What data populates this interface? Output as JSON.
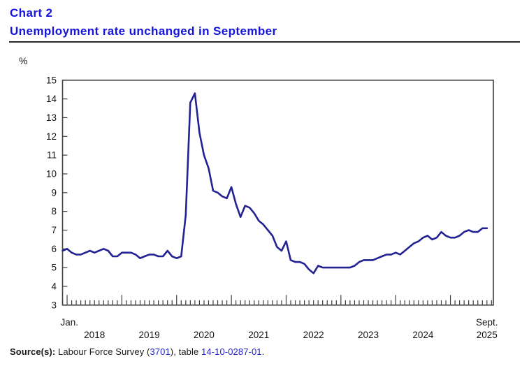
{
  "header": {
    "chart_label": "Chart 2",
    "title": "Unemployment rate unchanged in September"
  },
  "axis_unit": "%",
  "source": {
    "label": "Source(s):",
    "text_1": " Labour Force Survey (",
    "link_1": "3701",
    "text_2": "), table ",
    "link_2": "14-10-0287-01",
    "text_3": "."
  },
  "colors": {
    "title_blue": "#1414dd",
    "link_blue": "#2121cc",
    "line_navy": "#232293",
    "axis_dark": "#3f3f3f",
    "tick_text": "#151515"
  },
  "chart_data": {
    "type": "line",
    "title": "Chart 2",
    "subtitle": "Unemployment rate unchanged in September",
    "ylabel": "%",
    "ylim": [
      3,
      15
    ],
    "y_ticks": [
      15,
      14,
      13,
      12,
      11,
      10,
      9,
      8,
      7,
      6,
      5,
      4,
      3
    ],
    "grid": false,
    "legend": "none",
    "x_axis": {
      "first_tick_label": "Jan.",
      "year_labels": [
        "2018",
        "2019",
        "2020",
        "2021",
        "2022",
        "2023",
        "2024"
      ],
      "last_year_label": "2025",
      "last_month_label": "Sept.",
      "tick_frequency": "monthly",
      "major_tick_frequency": "yearly"
    },
    "series": [
      {
        "name": "Unemployment rate (%)",
        "color": "#232293",
        "start_month": "2017-12",
        "end_month": "2025-09",
        "months": [
          "2017-12",
          "2018-01",
          "2018-02",
          "2018-03",
          "2018-04",
          "2018-05",
          "2018-06",
          "2018-07",
          "2018-08",
          "2018-09",
          "2018-10",
          "2018-11",
          "2018-12",
          "2019-01",
          "2019-02",
          "2019-03",
          "2019-04",
          "2019-05",
          "2019-06",
          "2019-07",
          "2019-08",
          "2019-09",
          "2019-10",
          "2019-11",
          "2019-12",
          "2020-01",
          "2020-02",
          "2020-03",
          "2020-04",
          "2020-05",
          "2020-06",
          "2020-07",
          "2020-08",
          "2020-09",
          "2020-10",
          "2020-11",
          "2020-12",
          "2021-01",
          "2021-02",
          "2021-03",
          "2021-04",
          "2021-05",
          "2021-06",
          "2021-07",
          "2021-08",
          "2021-09",
          "2021-10",
          "2021-11",
          "2021-12",
          "2022-01",
          "2022-02",
          "2022-03",
          "2022-04",
          "2022-05",
          "2022-06",
          "2022-07",
          "2022-08",
          "2022-09",
          "2022-10",
          "2022-11",
          "2022-12",
          "2023-01",
          "2023-02",
          "2023-03",
          "2023-04",
          "2023-05",
          "2023-06",
          "2023-07",
          "2023-08",
          "2023-09",
          "2023-10",
          "2023-11",
          "2023-12",
          "2024-01",
          "2024-02",
          "2024-03",
          "2024-04",
          "2024-05",
          "2024-06",
          "2024-07",
          "2024-08",
          "2024-09",
          "2024-10",
          "2024-11",
          "2024-12",
          "2025-01",
          "2025-02",
          "2025-03",
          "2025-04",
          "2025-05",
          "2025-06",
          "2025-07",
          "2025-08",
          "2025-09"
        ],
        "values": [
          5.9,
          6.0,
          5.8,
          5.7,
          5.7,
          5.8,
          5.9,
          5.8,
          5.9,
          6.0,
          5.9,
          5.6,
          5.6,
          5.8,
          5.8,
          5.8,
          5.7,
          5.5,
          5.6,
          5.7,
          5.7,
          5.6,
          5.6,
          5.9,
          5.6,
          5.5,
          5.6,
          7.8,
          13.8,
          14.3,
          12.2,
          11.0,
          10.3,
          9.1,
          9.0,
          8.8,
          8.7,
          9.3,
          8.4,
          7.7,
          8.3,
          8.2,
          7.9,
          7.5,
          7.3,
          7.0,
          6.7,
          6.1,
          5.9,
          6.4,
          5.4,
          5.3,
          5.3,
          5.2,
          4.9,
          4.7,
          5.1,
          5.0,
          5.0,
          5.0,
          5.0,
          5.0,
          5.0,
          5.0,
          5.1,
          5.3,
          5.4,
          5.4,
          5.4,
          5.5,
          5.6,
          5.7,
          5.7,
          5.8,
          5.7,
          5.9,
          6.1,
          6.3,
          6.4,
          6.6,
          6.7,
          6.5,
          6.6,
          6.9,
          6.7,
          6.6,
          6.6,
          6.7,
          6.9,
          7.0,
          6.9,
          6.9,
          7.1,
          7.1
        ]
      }
    ]
  }
}
